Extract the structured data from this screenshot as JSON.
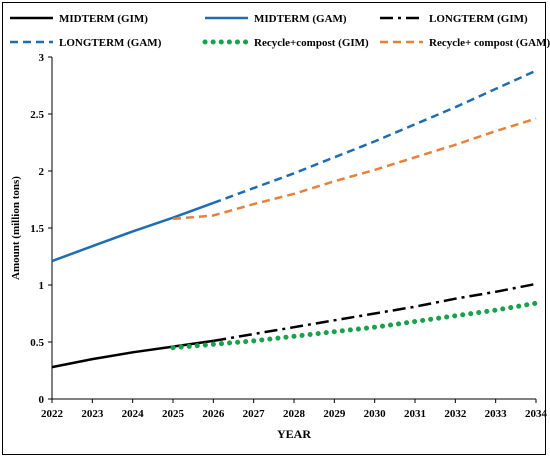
{
  "chart_data": {
    "type": "line",
    "xlabel": "YEAR",
    "ylabel": "Amount (million tons)",
    "xlim": [
      2022,
      2034
    ],
    "ylim": [
      0,
      3
    ],
    "yticks": [
      0,
      0.5,
      1,
      1.5,
      2,
      2.5,
      3
    ],
    "ytick_labels": [
      "0",
      "0.5",
      "1",
      "1.5",
      "2",
      "2.5",
      "3"
    ],
    "xticks": [
      2022,
      2023,
      2024,
      2025,
      2026,
      2027,
      2028,
      2029,
      2030,
      2031,
      2032,
      2033,
      2034
    ],
    "xtick_labels": [
      "2022",
      "2023",
      "2024",
      "2025",
      "2026",
      "2027",
      "2028",
      "2029",
      "2030",
      "2031",
      "2032",
      "2033",
      "2034"
    ],
    "grid": false,
    "legend_position": "top",
    "series": [
      {
        "name": "MIDTERM (GIM)",
        "color": "#000000",
        "style": "solid",
        "x": [
          2022,
          2023,
          2024,
          2025,
          2026
        ],
        "y": [
          0.28,
          0.35,
          0.41,
          0.46,
          0.51
        ]
      },
      {
        "name": "MIDTERM (GAM)",
        "color": "#1f6db0",
        "style": "solid",
        "x": [
          2022,
          2023,
          2024,
          2025,
          2026
        ],
        "y": [
          1.21,
          1.34,
          1.47,
          1.59,
          1.72
        ]
      },
      {
        "name": "LONGTERM (GIM)",
        "color": "#000000",
        "style": "dashdot",
        "x": [
          2026,
          2027,
          2028,
          2029,
          2030,
          2031,
          2032,
          2033,
          2034
        ],
        "y": [
          0.51,
          0.57,
          0.63,
          0.69,
          0.75,
          0.81,
          0.88,
          0.94,
          1.01
        ]
      },
      {
        "name": "LONGTERM (GAM)",
        "color": "#1f6db0",
        "style": "dashed",
        "x": [
          2026,
          2027,
          2028,
          2029,
          2030,
          2031,
          2032,
          2033,
          2034
        ],
        "y": [
          1.72,
          1.85,
          1.98,
          2.12,
          2.26,
          2.41,
          2.56,
          2.72,
          2.88
        ]
      },
      {
        "name": "Recycle+compost (GIM)",
        "color": "#16a34a",
        "style": "dotted",
        "x": [
          2025,
          2026,
          2027,
          2028,
          2029,
          2030,
          2031,
          2032,
          2033,
          2034
        ],
        "y": [
          0.45,
          0.48,
          0.51,
          0.55,
          0.59,
          0.63,
          0.68,
          0.73,
          0.78,
          0.84
        ]
      },
      {
        "name": "Recycle+ compost (GAM)",
        "color": "#e8803a",
        "style": "dashed",
        "x": [
          2025,
          2026,
          2027,
          2028,
          2029,
          2030,
          2031,
          2032,
          2033,
          2034
        ],
        "y": [
          1.58,
          1.61,
          1.71,
          1.8,
          1.91,
          2.01,
          2.12,
          2.23,
          2.35,
          2.46
        ]
      }
    ]
  }
}
